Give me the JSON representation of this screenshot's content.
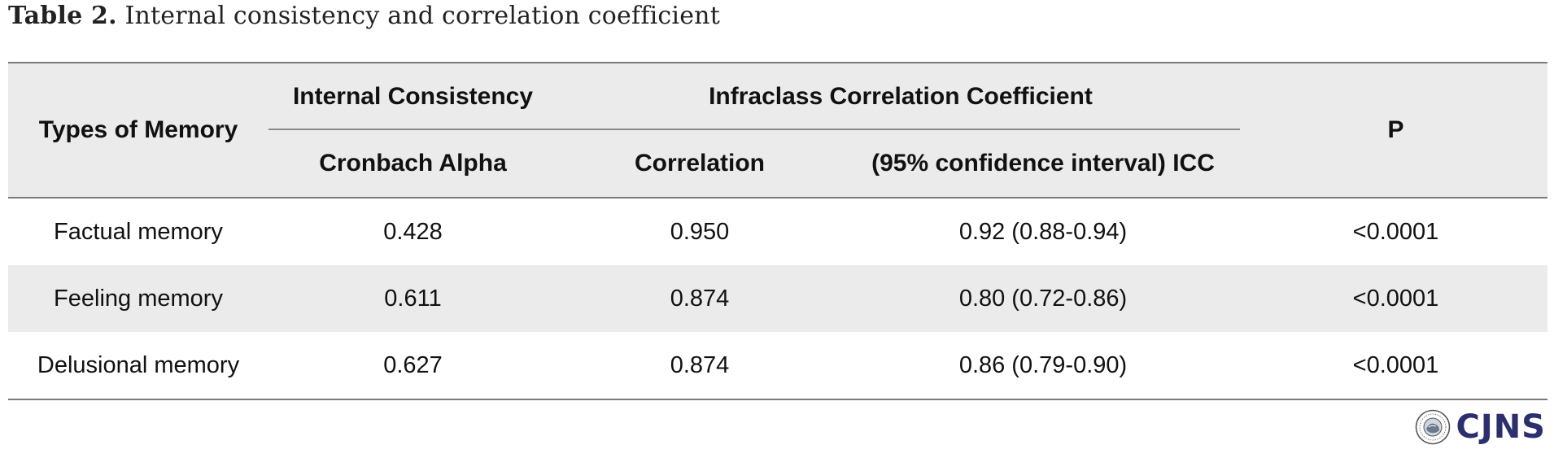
{
  "caption": {
    "label": "Table 2.",
    "text": " Internal consistency and correlation coefficient"
  },
  "headers": {
    "types": "Types of Memory",
    "internal_consistency": "Internal Consistency",
    "icc_group": "Infraclass Correlation Coefficient",
    "p": "P",
    "cronbach": "Cronbach Alpha",
    "correlation": "Correlation",
    "icc": "(95% confidence interval) ICC"
  },
  "rows": [
    {
      "type": "Factual memory",
      "alpha": "0.428",
      "correlation": "0.950",
      "icc": "0.92 (0.88-0.94)",
      "p": "<0.0001"
    },
    {
      "type": "Feeling memory",
      "alpha": "0.611",
      "correlation": "0.874",
      "icc": "0.80 (0.72-0.86)",
      "p": "<0.0001"
    },
    {
      "type": "Delusional memory",
      "alpha": "0.627",
      "correlation": "0.874",
      "icc": "0.86 (0.79-0.90)",
      "p": "<0.0001"
    }
  ],
  "logo": {
    "text": "CJNS",
    "seal_icon": "journal-seal-icon"
  }
}
